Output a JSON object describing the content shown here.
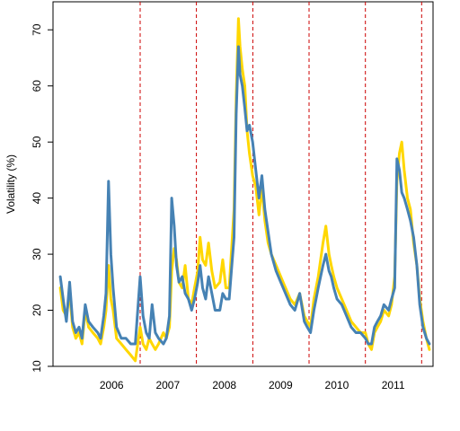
{
  "chart_data": {
    "type": "line",
    "title": "",
    "xlabel": "",
    "ylabel": "Volatility (%)",
    "ylim": [
      10,
      75
    ],
    "xlim": [
      "2005-06-15",
      "2012-03-15"
    ],
    "yticks": [
      10,
      20,
      30,
      40,
      50,
      60,
      70
    ],
    "grid": false,
    "legend": "none",
    "x_labels": [
      {
        "text": "2006",
        "x": "2006-06-30"
      },
      {
        "text": "2007",
        "x": "2007-06-30"
      },
      {
        "text": "2008",
        "x": "2008-06-30"
      },
      {
        "text": "2009",
        "x": "2009-06-30"
      },
      {
        "text": "2010",
        "x": "2010-06-30"
      },
      {
        "text": "2011",
        "x": "2011-06-30"
      }
    ],
    "year_boundaries": [
      "2007-01-01",
      "2008-01-01",
      "2009-01-01",
      "2010-01-01",
      "2011-01-01",
      "2012-01-01"
    ],
    "boundary_color": "#cc0000",
    "series": [
      {
        "color": "#FFD700",
        "x": [
          "2005-08-01",
          "2005-08-20",
          "2005-09-10",
          "2005-10-01",
          "2005-10-20",
          "2005-11-10",
          "2005-12-01",
          "2005-12-20",
          "2006-01-10",
          "2006-02-01",
          "2006-03-01",
          "2006-04-01",
          "2006-04-20",
          "2006-05-10",
          "2006-05-25",
          "2006-06-10",
          "2006-06-25",
          "2006-07-10",
          "2006-08-01",
          "2006-09-01",
          "2006-10-01",
          "2006-11-01",
          "2006-12-01",
          "2007-01-01",
          "2007-01-20",
          "2007-02-10",
          "2007-03-01",
          "2007-03-20",
          "2007-04-10",
          "2007-05-01",
          "2007-06-01",
          "2007-06-20",
          "2007-07-10",
          "2007-07-25",
          "2007-08-10",
          "2007-08-25",
          "2007-09-10",
          "2007-10-01",
          "2007-10-20",
          "2007-11-10",
          "2007-12-01",
          "2007-12-20",
          "2008-01-10",
          "2008-01-25",
          "2008-02-10",
          "2008-03-01",
          "2008-03-20",
          "2008-04-10",
          "2008-05-01",
          "2008-06-01",
          "2008-06-20",
          "2008-07-10",
          "2008-08-01",
          "2008-09-01",
          "2008-09-15",
          "2008-09-30",
          "2008-10-10",
          "2008-10-25",
          "2008-11-10",
          "2008-11-25",
          "2008-12-10",
          "2008-12-31",
          "2009-01-20",
          "2009-02-10",
          "2009-03-01",
          "2009-03-20",
          "2009-04-10",
          "2009-05-01",
          "2009-06-01",
          "2009-07-01",
          "2009-08-01",
          "2009-09-01",
          "2009-10-01",
          "2009-11-01",
          "2009-12-01",
          "2009-12-20",
          "2010-01-10",
          "2010-02-01",
          "2010-03-01",
          "2010-04-01",
          "2010-04-20",
          "2010-05-10",
          "2010-05-25",
          "2010-06-10",
          "2010-07-01",
          "2010-08-01",
          "2010-09-01",
          "2010-10-01",
          "2010-11-01",
          "2010-12-01",
          "2011-01-01",
          "2011-01-20",
          "2011-02-10",
          "2011-03-01",
          "2011-03-20",
          "2011-04-10",
          "2011-05-01",
          "2011-06-01",
          "2011-06-20",
          "2011-07-10",
          "2011-07-25",
          "2011-08-10",
          "2011-08-25",
          "2011-09-10",
          "2011-10-01",
          "2011-10-20",
          "2011-11-10",
          "2011-12-01",
          "2011-12-20",
          "2012-01-10",
          "2012-02-01",
          "2012-02-20"
        ],
        "values": [
          24,
          20,
          19,
          23,
          17,
          15,
          16,
          14,
          20,
          17,
          16,
          15,
          14,
          17,
          20,
          28,
          22,
          20,
          15,
          14,
          13,
          12,
          11,
          17,
          14,
          13,
          15,
          14,
          13,
          14,
          16,
          15,
          17,
          27,
          31,
          29,
          25,
          24,
          28,
          22,
          21,
          24,
          27,
          33,
          29,
          28,
          32,
          27,
          24,
          25,
          29,
          24,
          24,
          38,
          58,
          72,
          67,
          63,
          60,
          52,
          48,
          44,
          42,
          37,
          42,
          36,
          32,
          30,
          28,
          26,
          24,
          22,
          21,
          23,
          19,
          18,
          17,
          22,
          26,
          32,
          35,
          30,
          28,
          26,
          24,
          22,
          20,
          18,
          17,
          16,
          16,
          14,
          13,
          16,
          17,
          18,
          20,
          19,
          21,
          26,
          43,
          48,
          50,
          45,
          40,
          38,
          32,
          28,
          22,
          18,
          15,
          13
        ]
      },
      {
        "color": "#4682B4",
        "x": [
          "2005-08-01",
          "2005-08-20",
          "2005-09-10",
          "2005-10-01",
          "2005-10-20",
          "2005-11-10",
          "2005-12-01",
          "2005-12-20",
          "2006-01-10",
          "2006-02-01",
          "2006-03-01",
          "2006-04-01",
          "2006-04-20",
          "2006-05-10",
          "2006-05-25",
          "2006-06-10",
          "2006-06-25",
          "2006-07-10",
          "2006-08-01",
          "2006-09-01",
          "2006-10-01",
          "2006-11-01",
          "2006-12-01",
          "2007-01-01",
          "2007-01-20",
          "2007-02-10",
          "2007-03-01",
          "2007-03-20",
          "2007-04-10",
          "2007-05-01",
          "2007-06-01",
          "2007-06-20",
          "2007-07-10",
          "2007-07-25",
          "2007-08-10",
          "2007-08-25",
          "2007-09-10",
          "2007-10-01",
          "2007-10-20",
          "2007-11-10",
          "2007-12-01",
          "2007-12-20",
          "2008-01-10",
          "2008-01-25",
          "2008-02-10",
          "2008-03-01",
          "2008-03-20",
          "2008-04-10",
          "2008-05-01",
          "2008-06-01",
          "2008-06-20",
          "2008-07-10",
          "2008-08-01",
          "2008-09-01",
          "2008-09-15",
          "2008-09-30",
          "2008-10-10",
          "2008-10-25",
          "2008-11-10",
          "2008-11-25",
          "2008-12-10",
          "2008-12-31",
          "2009-01-20",
          "2009-02-10",
          "2009-03-01",
          "2009-03-20",
          "2009-04-10",
          "2009-05-01",
          "2009-06-01",
          "2009-07-01",
          "2009-08-01",
          "2009-09-01",
          "2009-10-01",
          "2009-11-01",
          "2009-12-01",
          "2009-12-20",
          "2010-01-10",
          "2010-02-01",
          "2010-03-01",
          "2010-04-01",
          "2010-04-20",
          "2010-05-10",
          "2010-05-25",
          "2010-06-10",
          "2010-07-01",
          "2010-08-01",
          "2010-09-01",
          "2010-10-01",
          "2010-11-01",
          "2010-12-01",
          "2011-01-01",
          "2011-01-20",
          "2011-02-10",
          "2011-03-01",
          "2011-03-20",
          "2011-04-10",
          "2011-05-01",
          "2011-06-01",
          "2011-06-20",
          "2011-07-10",
          "2011-07-25",
          "2011-08-10",
          "2011-08-25",
          "2011-09-10",
          "2011-10-01",
          "2011-10-20",
          "2011-11-10",
          "2011-12-01",
          "2011-12-20",
          "2012-01-10",
          "2012-02-01",
          "2012-02-20"
        ],
        "values": [
          26,
          22,
          18,
          25,
          18,
          16,
          17,
          15,
          21,
          18,
          17,
          16,
          15,
          19,
          23,
          43,
          30,
          24,
          17,
          15,
          15,
          14,
          14,
          26,
          19,
          16,
          15,
          21,
          16,
          15,
          14,
          15,
          19,
          40,
          35,
          28,
          25,
          26,
          23,
          22,
          20,
          22,
          25,
          28,
          24,
          22,
          26,
          23,
          20,
          20,
          23,
          22,
          22,
          33,
          55,
          67,
          62,
          60,
          56,
          52,
          53,
          50,
          45,
          40,
          44,
          38,
          34,
          30,
          27,
          25,
          23,
          21,
          20,
          23,
          18,
          17,
          16,
          20,
          24,
          28,
          30,
          27,
          26,
          24,
          22,
          21,
          19,
          17,
          16,
          16,
          15,
          14,
          14,
          17,
          18,
          19,
          21,
          20,
          22,
          24,
          47,
          45,
          41,
          40,
          38,
          36,
          33,
          28,
          21,
          17,
          15,
          14
        ]
      }
    ]
  }
}
